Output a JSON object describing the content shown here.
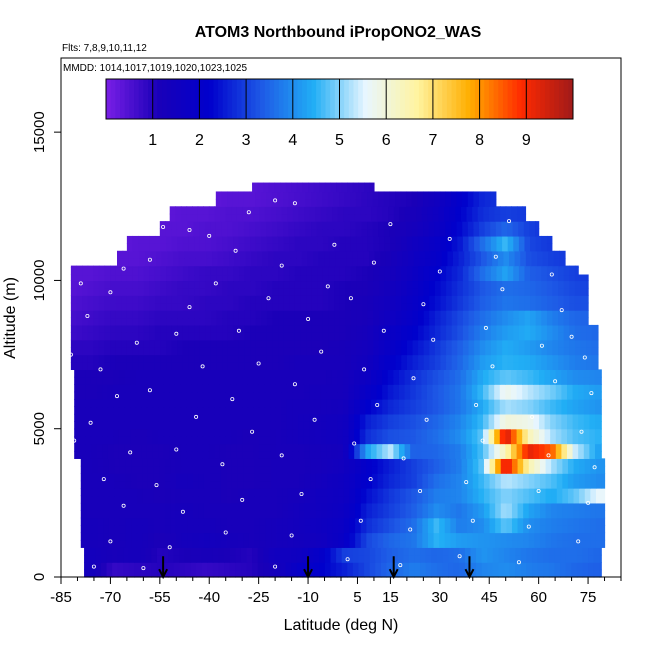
{
  "chart_data": {
    "type": "heatmap",
    "title": "ATOM3 Northbound iPropONO2_WAS",
    "flights_note": "Flts: 7,8,9,10,11,12",
    "dates_note": "MMDD: 1014,1017,1019,1020,1023,1025",
    "xlabel": "Latitude (deg N)",
    "ylabel": "Altitude (m)",
    "xlim": [
      -85,
      85
    ],
    "ylim": [
      0,
      17500
    ],
    "x_ticks": [
      -85,
      -70,
      -55,
      -40,
      -25,
      -10,
      5,
      15,
      30,
      45,
      60,
      75
    ],
    "x_tick_labels": [
      "-85",
      "-70",
      "-55",
      "-40",
      "-25",
      "-10",
      "5",
      "15",
      "30",
      "45",
      "60",
      "75"
    ],
    "y_ticks": [
      0,
      5000,
      10000,
      15000
    ],
    "y_tick_labels": [
      "0",
      "5000",
      "10000",
      "15000"
    ],
    "colorbar": {
      "range": [
        0,
        10
      ],
      "ticks": [
        1,
        2,
        3,
        4,
        5,
        6,
        7,
        8,
        9
      ],
      "tick_labels": [
        "1",
        "2",
        "3",
        "4",
        "5",
        "6",
        "7",
        "8",
        "9"
      ],
      "colors": [
        "#7a1fe6",
        "#1a00b8",
        "#0000cc",
        "#1e5ae6",
        "#21aef5",
        "#e8f6ff",
        "#fff4a0",
        "#ffae00",
        "#ff2a00",
        "#a01a1a"
      ]
    },
    "profile_markers_lat": [
      -54,
      -10,
      16,
      39
    ],
    "field_rows": [
      {
        "alt": 250,
        "values": [
          1.3,
          1.4,
          0.8,
          0.9,
          1.0,
          0.9,
          0.8,
          0.9,
          1.0,
          1.3,
          1.9,
          2.2,
          2.6,
          3.1,
          3.5,
          3.8,
          3.6,
          3.5,
          3.9,
          4.0,
          3.8,
          3.7,
          3.5,
          3.4
        ]
      },
      {
        "alt": 750,
        "values": [
          1.3,
          1.4,
          1.2,
          1.3,
          1.0,
          1.1,
          1.2,
          1.1,
          1.0,
          1.5,
          1.6,
          2.0,
          3.0,
          3.1,
          3.4,
          3.6,
          3.5,
          3.6,
          4.1,
          3.9,
          3.7,
          3.6,
          3.6,
          3.5
        ]
      },
      {
        "alt": 1250,
        "values": [
          1.3,
          1.3,
          1.2,
          1.3,
          1.1,
          1.3,
          1.4,
          1.3,
          1.2,
          1.3,
          1.4,
          1.5,
          1.9,
          3.1,
          3.5,
          3.7,
          4.5,
          4.2,
          4.1,
          4.0,
          3.9,
          3.7,
          3.6,
          3.6
        ]
      },
      {
        "alt": 1750,
        "values": [
          1.3,
          1.3,
          1.2,
          1.3,
          1.2,
          1.3,
          1.3,
          1.2,
          1.2,
          1.3,
          1.4,
          1.6,
          1.8,
          2.8,
          3.2,
          3.6,
          4.6,
          3.8,
          4.0,
          4.8,
          4.0,
          3.8,
          3.7,
          3.6
        ]
      },
      {
        "alt": 2250,
        "values": [
          1.3,
          1.2,
          1.2,
          1.2,
          1.2,
          1.3,
          1.2,
          1.2,
          1.2,
          1.2,
          1.4,
          1.5,
          1.7,
          2.6,
          3.0,
          3.4,
          4.0,
          3.7,
          4.2,
          5.2,
          4.3,
          3.9,
          3.8,
          3.7
        ]
      },
      {
        "alt": 2750,
        "values": [
          1.2,
          1.2,
          1.2,
          1.2,
          1.1,
          1.2,
          1.2,
          1.1,
          1.2,
          1.2,
          1.3,
          1.5,
          1.6,
          2.4,
          2.9,
          3.3,
          3.8,
          3.9,
          4.5,
          5.0,
          4.7,
          4.4,
          4.8,
          5.6
        ]
      },
      {
        "alt": 3250,
        "values": [
          1.2,
          1.2,
          1.2,
          1.1,
          1.1,
          1.3,
          1.2,
          1.1,
          1.1,
          1.2,
          1.2,
          1.4,
          1.6,
          2.2,
          2.7,
          3.0,
          3.6,
          3.9,
          4.6,
          5.3,
          5.0,
          4.7,
          4.2,
          4.0
        ]
      },
      {
        "alt": 3750,
        "values": [
          1.2,
          1.2,
          1.1,
          1.1,
          1.1,
          1.2,
          1.2,
          1.1,
          1.1,
          1.2,
          1.2,
          1.3,
          1.5,
          2.1,
          2.6,
          3.0,
          3.4,
          3.8,
          4.8,
          9.4,
          6.5,
          5.2,
          4.4,
          4.1
        ]
      },
      {
        "alt": 4250,
        "values": [
          1.2,
          1.2,
          1.1,
          1.1,
          1.1,
          1.2,
          1.2,
          1.1,
          1.1,
          1.2,
          1.2,
          1.3,
          1.4,
          4.3,
          5.3,
          3.4,
          3.5,
          3.8,
          4.7,
          6.4,
          9.2,
          8.5,
          5.4,
          4.3
        ]
      },
      {
        "alt": 4750,
        "values": [
          1.2,
          1.2,
          1.2,
          1.1,
          1.2,
          1.2,
          1.2,
          1.2,
          1.1,
          1.2,
          1.3,
          1.4,
          1.5,
          2.8,
          3.2,
          3.3,
          3.6,
          4.0,
          4.8,
          9.5,
          6.4,
          5.2,
          4.7,
          4.5
        ]
      },
      {
        "alt": 5250,
        "values": [
          1.2,
          1.2,
          1.2,
          1.2,
          1.2,
          1.2,
          1.2,
          1.2,
          1.2,
          1.2,
          1.3,
          1.4,
          1.5,
          2.6,
          3.0,
          3.2,
          3.5,
          3.9,
          4.6,
          6.0,
          5.8,
          5.0,
          4.6,
          4.4
        ]
      },
      {
        "alt": 5750,
        "values": [
          1.2,
          1.2,
          1.2,
          1.2,
          1.2,
          1.2,
          1.2,
          1.2,
          1.2,
          1.2,
          1.3,
          1.3,
          1.4,
          2.2,
          2.7,
          3.0,
          3.3,
          3.7,
          4.4,
          5.2,
          5.0,
          4.6,
          4.3,
          4.1
        ]
      },
      {
        "alt": 6250,
        "values": [
          1.1,
          1.1,
          1.2,
          1.2,
          1.2,
          1.2,
          1.2,
          1.2,
          1.2,
          1.2,
          1.2,
          1.3,
          1.3,
          1.9,
          2.5,
          2.9,
          3.3,
          3.7,
          4.6,
          5.8,
          5.3,
          4.9,
          4.4,
          4.2
        ]
      },
      {
        "alt": 6750,
        "values": [
          1.1,
          1.1,
          1.1,
          1.2,
          1.2,
          1.2,
          1.2,
          1.2,
          1.2,
          1.2,
          1.2,
          1.2,
          1.3,
          1.7,
          2.3,
          2.8,
          3.2,
          3.6,
          4.4,
          4.8,
          4.6,
          4.3,
          4.0,
          3.9
        ]
      },
      {
        "alt": 7250,
        "values": [
          1.0,
          1.0,
          1.1,
          1.1,
          1.1,
          1.1,
          1.1,
          1.1,
          1.1,
          1.1,
          1.2,
          1.2,
          1.2,
          1.5,
          2.1,
          2.6,
          3.0,
          3.5,
          4.2,
          4.5,
          4.4,
          4.1,
          3.8,
          3.7
        ]
      },
      {
        "alt": 7750,
        "values": [
          0.9,
          0.9,
          1.0,
          1.0,
          1.0,
          1.1,
          1.1,
          1.1,
          1.1,
          1.1,
          1.1,
          1.1,
          1.2,
          1.4,
          1.9,
          2.4,
          2.9,
          3.4,
          4.0,
          4.4,
          4.2,
          3.9,
          3.7,
          3.6
        ]
      },
      {
        "alt": 8250,
        "values": [
          0.7,
          0.8,
          0.9,
          0.9,
          1.0,
          1.0,
          1.0,
          1.0,
          1.1,
          1.1,
          1.1,
          1.1,
          1.1,
          1.3,
          1.8,
          2.2,
          2.7,
          3.2,
          3.8,
          4.2,
          4.4,
          4.0,
          3.6,
          3.5
        ]
      },
      {
        "alt": 8750,
        "values": [
          0.6,
          0.7,
          0.8,
          0.8,
          0.9,
          0.9,
          0.9,
          1.0,
          1.0,
          1.1,
          1.1,
          1.1,
          1.1,
          1.2,
          1.6,
          2.0,
          2.6,
          3.1,
          3.6,
          4.0,
          4.3,
          3.8,
          3.5,
          3.4
        ]
      },
      {
        "alt": 9250,
        "values": [
          0.5,
          0.6,
          0.7,
          0.7,
          0.8,
          0.8,
          0.9,
          0.9,
          1.0,
          1.0,
          1.0,
          1.0,
          1.1,
          1.2,
          1.5,
          1.9,
          2.4,
          2.9,
          3.4,
          3.7,
          3.6,
          3.4,
          3.2,
          3.2
        ]
      },
      {
        "alt": 9750,
        "values": [
          0.4,
          0.5,
          0.6,
          0.6,
          0.7,
          0.8,
          0.8,
          0.9,
          0.9,
          1.0,
          1.0,
          1.0,
          1.1,
          1.1,
          1.4,
          1.8,
          2.3,
          2.8,
          3.3,
          3.6,
          3.5,
          3.3,
          3.1,
          3.0
        ]
      },
      {
        "alt": 10250,
        "values": [
          0.4,
          0.4,
          0.5,
          0.5,
          0.6,
          0.7,
          0.8,
          0.8,
          0.9,
          0.9,
          1.0,
          1.0,
          1.0,
          1.1,
          1.3,
          1.7,
          2.2,
          2.7,
          3.6,
          4.3,
          3.4,
          3.2,
          3.0,
          2.9
        ]
      },
      {
        "alt": 10750,
        "values": [
          0.3,
          0.3,
          0.4,
          0.4,
          0.5,
          0.6,
          0.6,
          0.7,
          0.8,
          0.9,
          0.9,
          1.0,
          1.0,
          1.0,
          1.2,
          1.6,
          2.0,
          2.6,
          3.3,
          4.0,
          3.2,
          3.0,
          2.9,
          2.8
        ]
      },
      {
        "alt": 11250,
        "values": [
          0.3,
          0.3,
          0.3,
          0.4,
          0.4,
          0.5,
          0.5,
          0.6,
          0.7,
          0.8,
          0.9,
          0.9,
          1.0,
          1.0,
          1.1,
          1.5,
          1.9,
          2.5,
          3.6,
          4.6,
          3.1,
          2.9,
          2.8,
          2.7
        ]
      },
      {
        "alt": 11750,
        "values": [
          0.3,
          0.3,
          0.3,
          0.3,
          0.4,
          0.4,
          0.5,
          0.5,
          0.6,
          0.7,
          0.8,
          0.9,
          0.9,
          1.0,
          1.1,
          1.3,
          1.7,
          2.3,
          3.0,
          3.5,
          3.0,
          2.8,
          2.7,
          2.6
        ]
      },
      {
        "alt": 12250,
        "values": [
          0.3,
          0.3,
          0.3,
          0.3,
          0.3,
          0.4,
          0.4,
          0.5,
          0.5,
          0.6,
          0.7,
          0.8,
          0.9,
          0.9,
          1.0,
          1.2,
          1.6,
          2.2,
          2.8,
          3.0,
          2.9,
          2.7,
          2.6,
          2.5
        ]
      },
      {
        "alt": 12750,
        "values": [
          0.3,
          0.3,
          0.3,
          0.3,
          0.3,
          0.3,
          0.3,
          0.4,
          0.4,
          0.5,
          0.6,
          0.7,
          0.8,
          0.9,
          1.0,
          1.1,
          1.5,
          2.1,
          2.7,
          2.9,
          2.8,
          2.6,
          2.5,
          2.4
        ]
      }
    ],
    "field_lat_start": -83,
    "field_lat_step": 7,
    "coverage": [
      {
        "alt_min": 0,
        "alt_max": 1000,
        "lat_min": -78,
        "lat_max": 79
      },
      {
        "alt_min": 1000,
        "alt_max": 4000,
        "lat_min": -79,
        "lat_max": 80
      },
      {
        "alt_min": 4000,
        "alt_max": 7000,
        "lat_min": -81,
        "lat_max": 79
      },
      {
        "alt_min": 7000,
        "alt_max": 8500,
        "lat_min": -82,
        "lat_max": 78
      },
      {
        "alt_min": 8500,
        "alt_max": 10200,
        "lat_min": -82,
        "lat_max": 75
      },
      {
        "alt_min": 10200,
        "alt_max": 10500,
        "lat_min": -82,
        "lat_max": 72
      },
      {
        "alt_min": 10500,
        "alt_max": 11000,
        "lat_min": -68,
        "lat_max": 68
      },
      {
        "alt_min": 11000,
        "alt_max": 11500,
        "lat_min": -65,
        "lat_max": 64
      },
      {
        "alt_min": 11500,
        "alt_max": 12000,
        "lat_min": -55,
        "lat_max": 60
      },
      {
        "alt_min": 12000,
        "alt_max": 12500,
        "lat_min": -52,
        "lat_max": 56
      },
      {
        "alt_min": 12500,
        "alt_max": 13000,
        "lat_min": -38,
        "lat_max": 47
      },
      {
        "alt_min": 13000,
        "alt_max": 13300,
        "lat_min": -27,
        "lat_max": 10
      }
    ],
    "sample_points": [
      [
        -75,
        350
      ],
      [
        -70,
        1200
      ],
      [
        -66,
        2400
      ],
      [
        -72,
        3300
      ],
      [
        -64,
        4200
      ],
      [
        -76,
        5200
      ],
      [
        -68,
        6100
      ],
      [
        -73,
        7000
      ],
      [
        -62,
        7900
      ],
      [
        -77,
        8800
      ],
      [
        -70,
        9600
      ],
      [
        -66,
        10400
      ],
      [
        -58,
        10700
      ],
      [
        -54,
        11800
      ],
      [
        -46,
        11700
      ],
      [
        -40,
        11500
      ],
      [
        -32,
        11000
      ],
      [
        -28,
        12300
      ],
      [
        -20,
        12700
      ],
      [
        -14,
        12600
      ],
      [
        -60,
        300
      ],
      [
        -52,
        1000
      ],
      [
        -48,
        2200
      ],
      [
        -56,
        3100
      ],
      [
        -50,
        4300
      ],
      [
        -44,
        5400
      ],
      [
        -58,
        6300
      ],
      [
        -42,
        7100
      ],
      [
        -50,
        8200
      ],
      [
        -46,
        9100
      ],
      [
        -38,
        9900
      ],
      [
        -35,
        1500
      ],
      [
        -30,
        2600
      ],
      [
        -36,
        3800
      ],
      [
        -27,
        4900
      ],
      [
        -33,
        6000
      ],
      [
        -25,
        7200
      ],
      [
        -31,
        8300
      ],
      [
        -22,
        9400
      ],
      [
        -18,
        10500
      ],
      [
        -20,
        350
      ],
      [
        -15,
        1400
      ],
      [
        -12,
        2800
      ],
      [
        -18,
        4100
      ],
      [
        -8,
        5300
      ],
      [
        -14,
        6500
      ],
      [
        -6,
        7600
      ],
      [
        -10,
        8700
      ],
      [
        -4,
        9800
      ],
      [
        -2,
        11200
      ],
      [
        2,
        600
      ],
      [
        6,
        1900
      ],
      [
        9,
        3300
      ],
      [
        4,
        4500
      ],
      [
        11,
        5800
      ],
      [
        7,
        7000
      ],
      [
        13,
        8300
      ],
      [
        3,
        9400
      ],
      [
        10,
        10600
      ],
      [
        15,
        11900
      ],
      [
        18,
        400
      ],
      [
        21,
        1600
      ],
      [
        24,
        2900
      ],
      [
        19,
        4000
      ],
      [
        26,
        5300
      ],
      [
        22,
        6700
      ],
      [
        28,
        8000
      ],
      [
        25,
        9200
      ],
      [
        30,
        10300
      ],
      [
        33,
        11400
      ],
      [
        36,
        700
      ],
      [
        40,
        1900
      ],
      [
        38,
        3200
      ],
      [
        43,
        4600
      ],
      [
        41,
        5800
      ],
      [
        46,
        7100
      ],
      [
        44,
        8400
      ],
      [
        49,
        9700
      ],
      [
        47,
        10800
      ],
      [
        51,
        12000
      ],
      [
        54,
        500
      ],
      [
        57,
        1700
      ],
      [
        60,
        2900
      ],
      [
        63,
        4100
      ],
      [
        58,
        5400
      ],
      [
        65,
        6600
      ],
      [
        61,
        7800
      ],
      [
        67,
        9000
      ],
      [
        64,
        10200
      ],
      [
        70,
        8100
      ],
      [
        72,
        1200
      ],
      [
        75,
        2500
      ],
      [
        77,
        3700
      ],
      [
        73,
        4900
      ],
      [
        76,
        6200
      ],
      [
        74,
        7400
      ],
      [
        -80,
        1700
      ],
      [
        -81,
        4600
      ],
      [
        -82,
        7500
      ],
      [
        -79,
        9900
      ]
    ]
  }
}
